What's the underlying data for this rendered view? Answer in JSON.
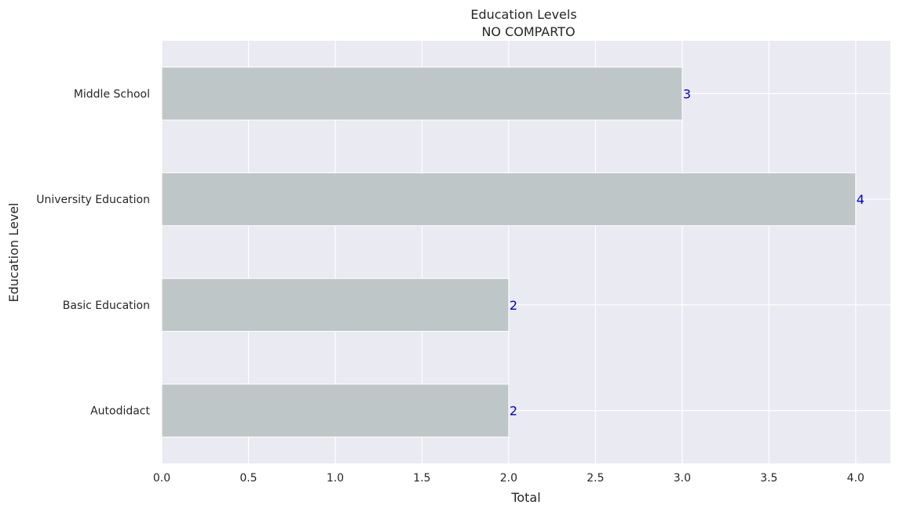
{
  "chart_data": {
    "type": "bar",
    "orientation": "horizontal",
    "title": "Education Levels",
    "subtitle": "NO COMPARTO",
    "xlabel": "Total",
    "ylabel": "Education Level",
    "categories": [
      "Middle School",
      "University Education",
      "Basic Education",
      "Autodidact"
    ],
    "values": [
      3,
      4,
      2,
      2
    ],
    "xlim": [
      0,
      4.2
    ],
    "xticks": [
      0.0,
      0.5,
      1.0,
      1.5,
      2.0,
      2.5,
      3.0,
      3.5,
      4.0
    ],
    "xtick_labels": [
      "0.0",
      "0.5",
      "1.0",
      "1.5",
      "2.0",
      "2.5",
      "3.0",
      "3.5",
      "4.0"
    ],
    "grid": true,
    "legend": "none",
    "colors": {
      "bar": "#bfc6c8",
      "plot_background": "#eaeaf2",
      "grid": "#ffffff",
      "data_label": "#0000cc",
      "text": "#262626"
    }
  }
}
